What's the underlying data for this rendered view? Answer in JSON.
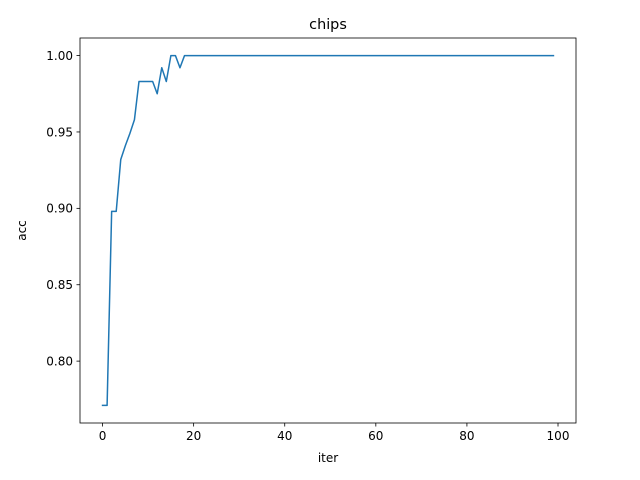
{
  "chart_data": {
    "type": "line",
    "title": "chips",
    "xlabel": "iter",
    "ylabel": "acc",
    "xlim": [
      -4.95,
      103.95
    ],
    "ylim": [
      0.7595,
      1.0115
    ],
    "xticks": [
      0,
      20,
      40,
      60,
      80,
      100
    ],
    "xtick_labels": [
      "0",
      "20",
      "40",
      "60",
      "80",
      "100"
    ],
    "yticks": [
      0.8,
      0.85,
      0.9,
      0.95,
      1.0
    ],
    "ytick_labels": [
      "0.80",
      "0.85",
      "0.90",
      "0.95",
      "1.00"
    ],
    "grid": false,
    "line_color": "#1f77b4",
    "series": [
      {
        "x": [
          0,
          1,
          2,
          3,
          4,
          5,
          6,
          7,
          8,
          9,
          10,
          11,
          12,
          13,
          14,
          15,
          16,
          17,
          18,
          19,
          20,
          25,
          30,
          40,
          50,
          60,
          70,
          80,
          90,
          99
        ],
        "y": [
          0.771,
          0.771,
          0.898,
          0.898,
          0.932,
          0.941,
          0.949,
          0.958,
          0.983,
          0.983,
          0.983,
          0.983,
          0.975,
          0.992,
          0.983,
          1.0,
          1.0,
          0.992,
          1.0,
          1.0,
          1.0,
          1.0,
          1.0,
          1.0,
          1.0,
          1.0,
          1.0,
          1.0,
          1.0,
          1.0
        ]
      }
    ]
  }
}
